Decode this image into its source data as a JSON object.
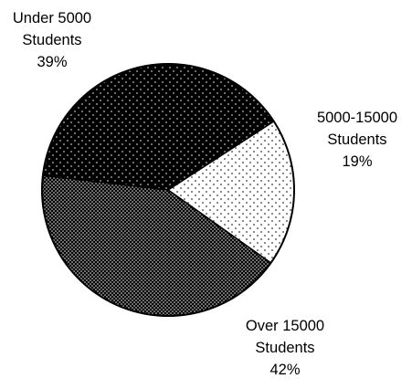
{
  "chart_data": {
    "type": "pie",
    "title": "",
    "slices": [
      {
        "label_lines": [
          "5000-15000",
          "Students"
        ],
        "percent_text": "19%",
        "value": 19,
        "pattern": "sparse-dots-on-white"
      },
      {
        "label_lines": [
          "Over 15000",
          "Students"
        ],
        "percent_text": "42%",
        "value": 42,
        "pattern": "dense-dots-on-black"
      },
      {
        "label_lines": [
          "Under 5000",
          "Students"
        ],
        "percent_text": "39%",
        "value": 39,
        "pattern": "sparse-dots-on-black"
      }
    ],
    "legend": "none",
    "colors": {
      "background": "#ffffff",
      "ink": "#000000"
    }
  }
}
